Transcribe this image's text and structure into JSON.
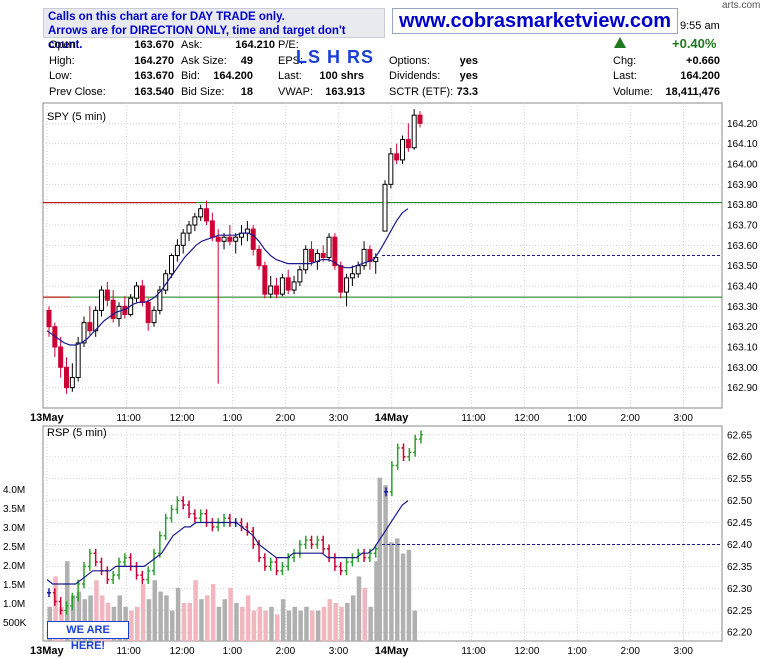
{
  "header": {
    "notice_line1": "Calls on this chart are for DAY TRADE only.",
    "notice_line2": "Arrows are for DIRECTION ONLY, time and target don't count.",
    "website": "www.cobrasmarketview.com",
    "time_fragment": "9:55 am",
    "corner_fragment": "arts.com",
    "change_pct": "+0.40%",
    "up_arrow_icon": "triangle-up-icon",
    "lshrs": "LS H RS"
  },
  "quote": {
    "open": {
      "label": "Open:",
      "value": "163.670"
    },
    "high": {
      "label": "High:",
      "value": "164.270"
    },
    "low": {
      "label": "Low:",
      "value": "163.670"
    },
    "prev_close": {
      "label": "Prev Close:",
      "value": "163.540"
    },
    "ask": {
      "label": "Ask:",
      "value": "164.210"
    },
    "ask_size": {
      "label": "Ask Size:",
      "value": "49"
    },
    "bid": {
      "label": "Bid:",
      "value": "164.200"
    },
    "bid_size": {
      "label": "Bid Size:",
      "value": "18"
    },
    "pe": {
      "label": "P/E:",
      "value": ""
    },
    "eps": {
      "label": "EPS:",
      "value": ""
    },
    "last_shrs": {
      "label": "Last:",
      "value": "100 shrs"
    },
    "vwap": {
      "label": "VWAP:",
      "value": "163.913"
    },
    "options": {
      "label": "Options:",
      "value": "yes"
    },
    "dividends": {
      "label": "Dividends:",
      "value": "yes"
    },
    "sctr": {
      "label": "SCTR (ETF):",
      "value": "73.3"
    },
    "chg": {
      "label": "Chg:",
      "value": "+0.660"
    },
    "last": {
      "label": "Last:",
      "value": "164.200"
    },
    "volume": {
      "label": "Volume:",
      "value": "18,411,476"
    }
  },
  "overlay": {
    "we_are_here": "WE ARE HERE!"
  },
  "colors": {
    "up": "#000000",
    "down": "#cc0033",
    "ma": "#1a1a8c",
    "support": "#0a7a0a",
    "resistance": "#cc0000",
    "dashed": "#1a1a8c",
    "rsp_up": "#2ca02c",
    "rsp_down": "#cc0033",
    "rsp_neutral": "#1a1aaa",
    "vol_up": "#b0b0b0",
    "vol_down": "#f2b6be"
  },
  "chart_data": [
    {
      "type": "candlestick",
      "title": "SPY (5 min)",
      "ylim": [
        162.8,
        164.3
      ],
      "y_ticks": [
        "164.20",
        "164.10",
        "164.00",
        "163.90",
        "163.80",
        "163.70",
        "163.60",
        "163.50",
        "163.40",
        "163.30",
        "163.20",
        "163.10",
        "163.00",
        "162.90"
      ],
      "x_ticks": [
        "13May",
        "11:00",
        "12:00",
        "1:00",
        "2:00",
        "3:00",
        "14May",
        "11:00",
        "12:00",
        "1:00",
        "2:00",
        "3:00"
      ],
      "horizontal_lines": [
        {
          "value": 163.81,
          "style": "resistance-left-red-right-green"
        },
        {
          "value": 163.345,
          "style": "solid-green"
        },
        {
          "value": 163.55,
          "style": "dashed"
        }
      ],
      "candles_day1": [
        [
          163.28,
          163.3,
          163.15,
          163.2
        ],
        [
          163.2,
          163.22,
          163.05,
          163.1
        ],
        [
          163.1,
          163.15,
          162.95,
          163.0
        ],
        [
          163.0,
          163.05,
          162.87,
          162.9
        ],
        [
          162.9,
          163.02,
          162.88,
          162.95
        ],
        [
          162.95,
          163.15,
          162.93,
          163.12
        ],
        [
          163.12,
          163.25,
          163.1,
          163.22
        ],
        [
          163.22,
          163.3,
          163.16,
          163.18
        ],
        [
          163.18,
          163.3,
          163.15,
          163.28
        ],
        [
          163.28,
          163.4,
          163.25,
          163.38
        ],
        [
          163.38,
          163.42,
          163.3,
          163.33
        ],
        [
          163.33,
          163.38,
          163.22,
          163.24
        ],
        [
          163.24,
          163.32,
          163.2,
          163.3
        ],
        [
          163.3,
          163.35,
          163.24,
          163.26
        ],
        [
          163.26,
          163.36,
          163.25,
          163.34
        ],
        [
          163.34,
          163.42,
          163.32,
          163.4
        ],
        [
          163.4,
          163.43,
          163.3,
          163.32
        ],
        [
          163.32,
          163.34,
          163.18,
          163.22
        ],
        [
          163.22,
          163.3,
          163.2,
          163.28
        ],
        [
          163.28,
          163.4,
          163.26,
          163.38
        ],
        [
          163.38,
          163.48,
          163.36,
          163.46
        ],
        [
          163.46,
          163.56,
          163.44,
          163.55
        ],
        [
          163.55,
          163.63,
          163.52,
          163.6
        ],
        [
          163.6,
          163.68,
          163.56,
          163.66
        ],
        [
          163.66,
          163.72,
          163.62,
          163.7
        ],
        [
          163.7,
          163.76,
          163.67,
          163.74
        ],
        [
          163.74,
          163.8,
          163.72,
          163.78
        ],
        [
          163.78,
          163.82,
          163.7,
          163.72
        ],
        [
          163.72,
          163.76,
          163.62,
          163.64
        ],
        [
          163.64,
          163.68,
          162.92,
          163.62
        ],
        [
          163.62,
          163.66,
          163.58,
          163.64
        ],
        [
          163.64,
          163.7,
          163.6,
          163.62
        ],
        [
          163.62,
          163.66,
          163.56,
          163.64
        ],
        [
          163.64,
          163.7,
          163.6,
          163.66
        ],
        [
          163.66,
          163.72,
          163.62,
          163.68
        ],
        [
          163.68,
          163.7,
          163.55,
          163.58
        ],
        [
          163.58,
          163.6,
          163.48,
          163.5
        ],
        [
          163.5,
          163.52,
          163.34,
          163.36
        ],
        [
          163.36,
          163.45,
          163.34,
          163.4
        ],
        [
          163.4,
          163.44,
          163.34,
          163.36
        ],
        [
          163.36,
          163.46,
          163.35,
          163.44
        ],
        [
          163.44,
          163.48,
          163.36,
          163.38
        ],
        [
          163.38,
          163.45,
          163.36,
          163.42
        ],
        [
          163.42,
          163.5,
          163.4,
          163.48
        ],
        [
          163.48,
          163.6,
          163.46,
          163.58
        ],
        [
          163.58,
          163.62,
          163.5,
          163.52
        ],
        [
          163.52,
          163.58,
          163.48,
          163.56
        ],
        [
          163.56,
          163.6,
          163.52,
          163.54
        ],
        [
          163.54,
          163.66,
          163.52,
          163.64
        ],
        [
          163.64,
          163.66,
          163.48,
          163.5
        ],
        [
          163.5,
          163.52,
          163.34,
          163.37
        ],
        [
          163.37,
          163.46,
          163.3,
          163.44
        ],
        [
          163.44,
          163.5,
          163.4,
          163.46
        ],
        [
          163.46,
          163.52,
          163.44,
          163.5
        ],
        [
          163.5,
          163.62,
          163.48,
          163.58
        ],
        [
          163.58,
          163.6,
          163.48,
          163.52
        ],
        [
          163.52,
          163.56,
          163.46,
          163.54
        ]
      ],
      "candles_day2": [
        [
          163.67,
          163.92,
          163.67,
          163.9
        ],
        [
          163.9,
          164.08,
          163.88,
          164.05
        ],
        [
          164.05,
          164.1,
          164.0,
          164.02
        ],
        [
          164.02,
          164.14,
          164.0,
          164.12
        ],
        [
          164.12,
          164.2,
          164.06,
          164.08
        ],
        [
          164.08,
          164.27,
          164.07,
          164.24
        ],
        [
          164.24,
          164.26,
          164.18,
          164.2
        ]
      ],
      "moving_average": [
        163.18,
        163.16,
        163.14,
        163.12,
        163.11,
        163.11,
        163.12,
        163.14,
        163.17,
        163.2,
        163.23,
        163.25,
        163.27,
        163.28,
        163.29,
        163.31,
        163.32,
        163.32,
        163.33,
        163.35,
        163.38,
        163.42,
        163.46,
        163.5,
        163.54,
        163.57,
        163.6,
        163.62,
        163.63,
        163.64,
        163.65,
        163.65,
        163.65,
        163.65,
        163.66,
        163.66,
        163.65,
        163.62,
        163.58,
        163.55,
        163.53,
        163.52,
        163.51,
        163.51,
        163.51,
        163.51,
        163.51,
        163.52,
        163.53,
        163.53,
        163.52,
        163.5,
        163.49,
        163.49,
        163.5,
        163.51,
        163.52,
        163.53,
        163.57,
        163.62,
        163.67,
        163.72,
        163.76,
        163.78
      ]
    },
    {
      "type": "bar-with-volume",
      "title": "RSP (5 min)",
      "ylim": [
        62.18,
        62.67
      ],
      "y_ticks": [
        "62.65",
        "62.60",
        "62.55",
        "62.50",
        "62.45",
        "62.40",
        "62.35",
        "62.30",
        "62.25",
        "62.20"
      ],
      "volume_ticks": [
        "4.0M",
        "3.5M",
        "3.0M",
        "2.5M",
        "2.0M",
        "1.5M",
        "1.0M",
        "500K"
      ],
      "volume_max": 4.5,
      "x_ticks": [
        "13May",
        "11:00",
        "12:00",
        "1:00",
        "2:00",
        "3:00",
        "14May",
        "11:00",
        "12:00",
        "1:00",
        "2:00",
        "3:00"
      ],
      "dashed_value": 62.4,
      "rsp_closes_day1": [
        62.29,
        62.27,
        62.25,
        62.26,
        62.28,
        62.31,
        62.35,
        62.38,
        62.36,
        62.34,
        62.32,
        62.33,
        62.36,
        62.37,
        62.35,
        62.33,
        62.32,
        62.34,
        62.38,
        62.42,
        62.46,
        62.48,
        62.5,
        62.49,
        62.47,
        62.46,
        62.47,
        62.45,
        62.44,
        62.45,
        62.46,
        62.45,
        62.45,
        62.44,
        62.43,
        62.4,
        62.37,
        62.35,
        62.36,
        62.34,
        62.35,
        62.37,
        62.38,
        62.4,
        62.41,
        62.4,
        62.41,
        62.39,
        62.37,
        62.35,
        62.34,
        62.36,
        62.37,
        62.38,
        62.37,
        62.38,
        62.39
      ],
      "rsp_closes_day2": [
        62.52,
        62.58,
        62.62,
        62.6,
        62.61,
        62.64,
        62.65
      ],
      "rsp_ma": [
        62.32,
        62.31,
        62.31,
        62.31,
        62.31,
        62.31,
        62.32,
        62.33,
        62.34,
        62.34,
        62.34,
        62.34,
        62.35,
        62.35,
        62.35,
        62.35,
        62.35,
        62.35,
        62.36,
        62.37,
        62.38,
        62.4,
        62.42,
        62.43,
        62.44,
        62.44,
        62.45,
        62.45,
        62.45,
        62.45,
        62.45,
        62.45,
        62.45,
        62.45,
        62.44,
        62.43,
        62.42,
        62.4,
        62.39,
        62.38,
        62.37,
        62.37,
        62.37,
        62.38,
        62.38,
        62.38,
        62.38,
        62.38,
        62.38,
        62.37,
        62.37,
        62.37,
        62.37,
        62.37,
        62.37,
        62.38,
        62.38,
        62.39,
        62.41,
        62.43,
        62.45,
        62.47,
        62.49,
        62.5
      ],
      "volume_day1": [
        0.9,
        1.7,
        0.9,
        2.1,
        1.2,
        1.3,
        1.1,
        1.2,
        1.6,
        1.2,
        1.0,
        0.9,
        1.2,
        0.9,
        0.8,
        0.9,
        1.5,
        1.1,
        1.6,
        1.3,
        1.2,
        0.8,
        1.4,
        1.0,
        1.0,
        1.6,
        1.1,
        1.2,
        1.5,
        0.9,
        1.1,
        1.4,
        1.0,
        0.9,
        1.2,
        0.8,
        0.9,
        0.8,
        0.9,
        0.7,
        1.1,
        0.8,
        0.9,
        0.8,
        0.9,
        0.8,
        0.8,
        0.9,
        1.1,
        1.0,
        0.9,
        1.0,
        1.2,
        1.7,
        1.4,
        0.9,
        2.1
      ],
      "volume_day2": [
        4.3,
        4.1,
        2.6,
        2.7,
        2.3,
        2.4,
        0.8
      ]
    }
  ]
}
